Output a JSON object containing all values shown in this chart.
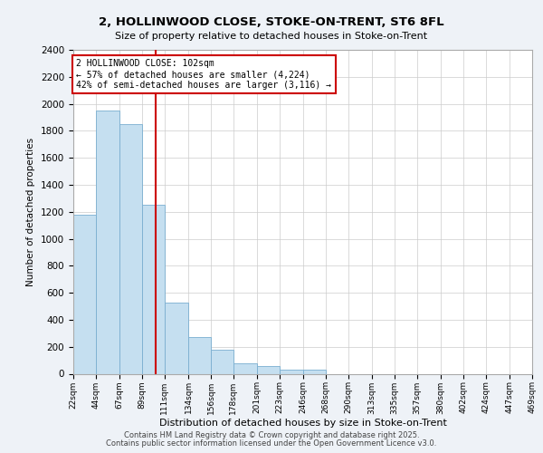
{
  "title_line1": "2, HOLLINWOOD CLOSE, STOKE-ON-TRENT, ST6 8FL",
  "title_line2": "Size of property relative to detached houses in Stoke-on-Trent",
  "xlabel": "Distribution of detached houses by size in Stoke-on-Trent",
  "ylabel": "Number of detached properties",
  "annotation_line1": "2 HOLLINWOOD CLOSE: 102sqm",
  "annotation_line2": "← 57% of detached houses are smaller (4,224)",
  "annotation_line3": "42% of semi-detached houses are larger (3,116) →",
  "property_size": 102,
  "bin_edges": [
    22,
    44,
    67,
    89,
    111,
    134,
    156,
    178,
    201,
    223,
    246,
    268,
    290,
    313,
    335,
    357,
    380,
    402,
    424,
    447,
    469
  ],
  "bin_heights": [
    1175,
    1950,
    1850,
    1250,
    530,
    270,
    175,
    80,
    55,
    30,
    30,
    0,
    0,
    0,
    0,
    0,
    0,
    0,
    0,
    0
  ],
  "bar_color": "#c5dff0",
  "bar_edge_color": "#7aaed0",
  "vline_color": "#cc0000",
  "vline_x": 102,
  "annotation_box_color": "#cc0000",
  "ylim": [
    0,
    2400
  ],
  "yticks": [
    0,
    200,
    400,
    600,
    800,
    1000,
    1200,
    1400,
    1600,
    1800,
    2000,
    2200,
    2400
  ],
  "background_color": "#eef2f7",
  "plot_bg_color": "#ffffff",
  "footer_line1": "Contains HM Land Registry data © Crown copyright and database right 2025.",
  "footer_line2": "Contains public sector information licensed under the Open Government Licence v3.0."
}
